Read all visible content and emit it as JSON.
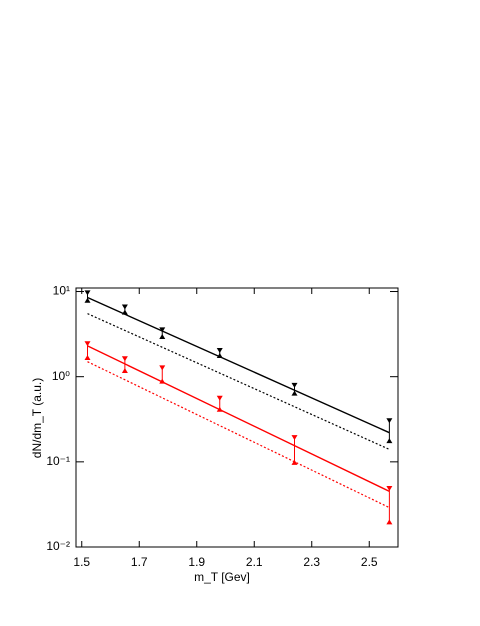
{
  "chart_data": {
    "type": "line",
    "x_label": "m_T [Gev]",
    "y_label": "dN/dm_T (a.u.)",
    "log_y": true,
    "xlim": [
      1.48,
      2.6
    ],
    "ylim": [
      0.01,
      11
    ],
    "xticks": [
      1.5,
      1.7,
      1.9,
      2.1,
      2.3,
      2.5
    ],
    "yticks": [
      {
        "value": 0.01,
        "label": "10⁻²"
      },
      {
        "value": 0.1,
        "label": "10⁻¹"
      },
      {
        "value": 1,
        "label": "10⁰"
      },
      {
        "value": 10,
        "label": "10¹"
      }
    ],
    "measurements": [
      {
        "color": "#000000",
        "x": [
          1.52,
          1.65,
          1.78,
          1.98,
          2.24,
          2.57
        ],
        "lower": [
          8,
          5.8,
          3.0,
          1.8,
          0.65,
          0.18
        ],
        "upper": [
          9.5,
          6.5,
          3.5,
          2.0,
          0.78,
          0.3
        ]
      },
      {
        "color": "#ff0000",
        "x": [
          1.52,
          1.65,
          1.78,
          1.98,
          2.24,
          2.57
        ],
        "lower": [
          1.7,
          1.2,
          0.9,
          0.42,
          0.1,
          0.02
        ],
        "upper": [
          2.4,
          1.6,
          1.25,
          0.55,
          0.19,
          0.048
        ]
      }
    ],
    "curves": [
      {
        "color": "#000000",
        "dashed": false,
        "x": [
          1.52,
          2.57
        ],
        "values": [
          8.5,
          0.22
        ]
      },
      {
        "color": "#000000",
        "dashed": true,
        "x": [
          1.52,
          2.57
        ],
        "values": [
          5.5,
          0.14
        ]
      },
      {
        "color": "#ff0000",
        "dashed": false,
        "x": [
          1.52,
          2.57
        ],
        "values": [
          2.3,
          0.045
        ]
      },
      {
        "color": "#ff0000",
        "dashed": true,
        "x": [
          1.52,
          2.57
        ],
        "values": [
          1.5,
          0.029
        ]
      }
    ]
  }
}
